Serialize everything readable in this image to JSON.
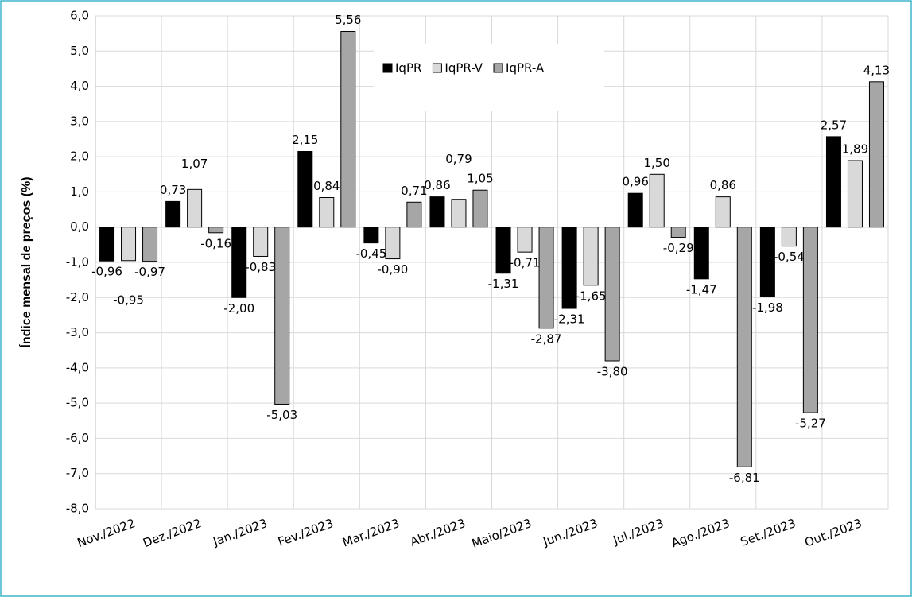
{
  "chart_data": {
    "type": "bar",
    "y_label": "Índice mensal de preços (%)",
    "categories": [
      "Nov./2022",
      "Dez./2022",
      "Jan./2023",
      "Fev./2023",
      "Mar./2023",
      "Abr./2023",
      "Maio/2023",
      "Jun./2023",
      "Jul./2023",
      "Ago./2023",
      "Set./2023",
      "Out./2023"
    ],
    "series": [
      {
        "name": "IqPR",
        "color": "#000000",
        "values": [
          -0.96,
          0.73,
          -2.0,
          2.15,
          -0.45,
          0.86,
          -1.31,
          -2.31,
          0.96,
          -1.47,
          -1.98,
          2.57
        ],
        "value_labels": [
          "-0,96",
          "0,73",
          "-2,00",
          "2,15",
          "-0,45",
          "0,86",
          "-1,31",
          "-2,31",
          "0,96",
          "-1,47",
          "-1,98",
          "2,57"
        ]
      },
      {
        "name": "IqPR-V",
        "color": "#d9d9d9",
        "values": [
          -0.95,
          1.07,
          -0.83,
          0.84,
          -0.9,
          0.79,
          -0.71,
          -1.65,
          1.5,
          0.86,
          -0.54,
          1.89
        ],
        "value_labels": [
          "-0,95",
          "1,07",
          "-0,83",
          "0,84",
          "-0,90",
          "0,79",
          "-0,71",
          "-1,65",
          "1,50",
          "0,86",
          "-0,54",
          "1,89"
        ]
      },
      {
        "name": "IqPR-A",
        "color": "#a6a6a6",
        "values": [
          -0.97,
          -0.16,
          -5.03,
          5.56,
          0.71,
          1.05,
          -2.87,
          -3.8,
          -0.29,
          -6.81,
          -5.27,
          4.13
        ],
        "value_labels": [
          "-0,97",
          "-0,16",
          "-5,03",
          "5,56",
          "0,71",
          "1,05",
          "-2,87",
          "-3,80",
          "-0,29",
          "-6,81",
          "-5,27",
          "4,13"
        ]
      }
    ],
    "ylim": [
      -8,
      6
    ],
    "yticks": [
      {
        "value": -8,
        "label": "-8,0"
      },
      {
        "value": -7,
        "label": "-7,0"
      },
      {
        "value": -6,
        "label": "-6,0"
      },
      {
        "value": -5,
        "label": "-5,0"
      },
      {
        "value": -4,
        "label": "-4,0"
      },
      {
        "value": -3,
        "label": "-3,0"
      },
      {
        "value": -2,
        "label": "-2,0"
      },
      {
        "value": -1,
        "label": "-1,0"
      },
      {
        "value": 0,
        "label": "0,0"
      },
      {
        "value": 1,
        "label": "1,0"
      },
      {
        "value": 2,
        "label": "2,0"
      },
      {
        "value": 3,
        "label": "3,0"
      },
      {
        "value": 4,
        "label": "4,0"
      },
      {
        "value": 5,
        "label": "5,0"
      },
      {
        "value": 6,
        "label": "6,0"
      }
    ],
    "grid": true,
    "legend": "upper center"
  }
}
